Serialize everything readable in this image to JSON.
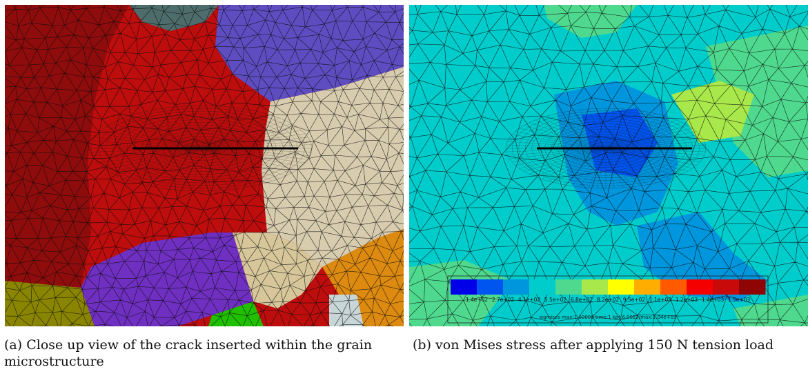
{
  "figure": {
    "panel_a": {
      "caption_label": "(a)",
      "caption_text": "Close up view of the crack inserted within the grain microstructure",
      "grain_colors": [
        "#8e0c0c",
        "#bd0d0d",
        "#4e6c6c",
        "#5d4dc0",
        "#d8ccaf",
        "#d6c69a",
        "#6f2fc0",
        "#8a8500",
        "#20c000",
        "#dd8a10",
        "#c8d6d8"
      ]
    },
    "panel_b": {
      "caption_label": "(b)",
      "caption_text": "von Mises stress after applying 150 N tension load",
      "colorbar": {
        "colors": [
          "#0000e8",
          "#0055f0",
          "#0096dd",
          "#00cccc",
          "#4ed98e",
          "#a8e84a",
          "#ffff00",
          "#ffad00",
          "#ff5a00",
          "#f50000",
          "#c80a0a",
          "#8f0505"
        ],
        "tick_labels": [
          "1.4e+02",
          "2.7e+02",
          "4.1e+02",
          "5.5e+02",
          "6.8e+02",
          "8.2e+02",
          "9.5e+02",
          "1.1e+03",
          "1.2e+03",
          "1.4e+03",
          "1.5e+03"
        ],
        "footer": "sigmises max:1.00000   time:1   kpt:6.0022/max:1.04e+03"
      }
    }
  }
}
